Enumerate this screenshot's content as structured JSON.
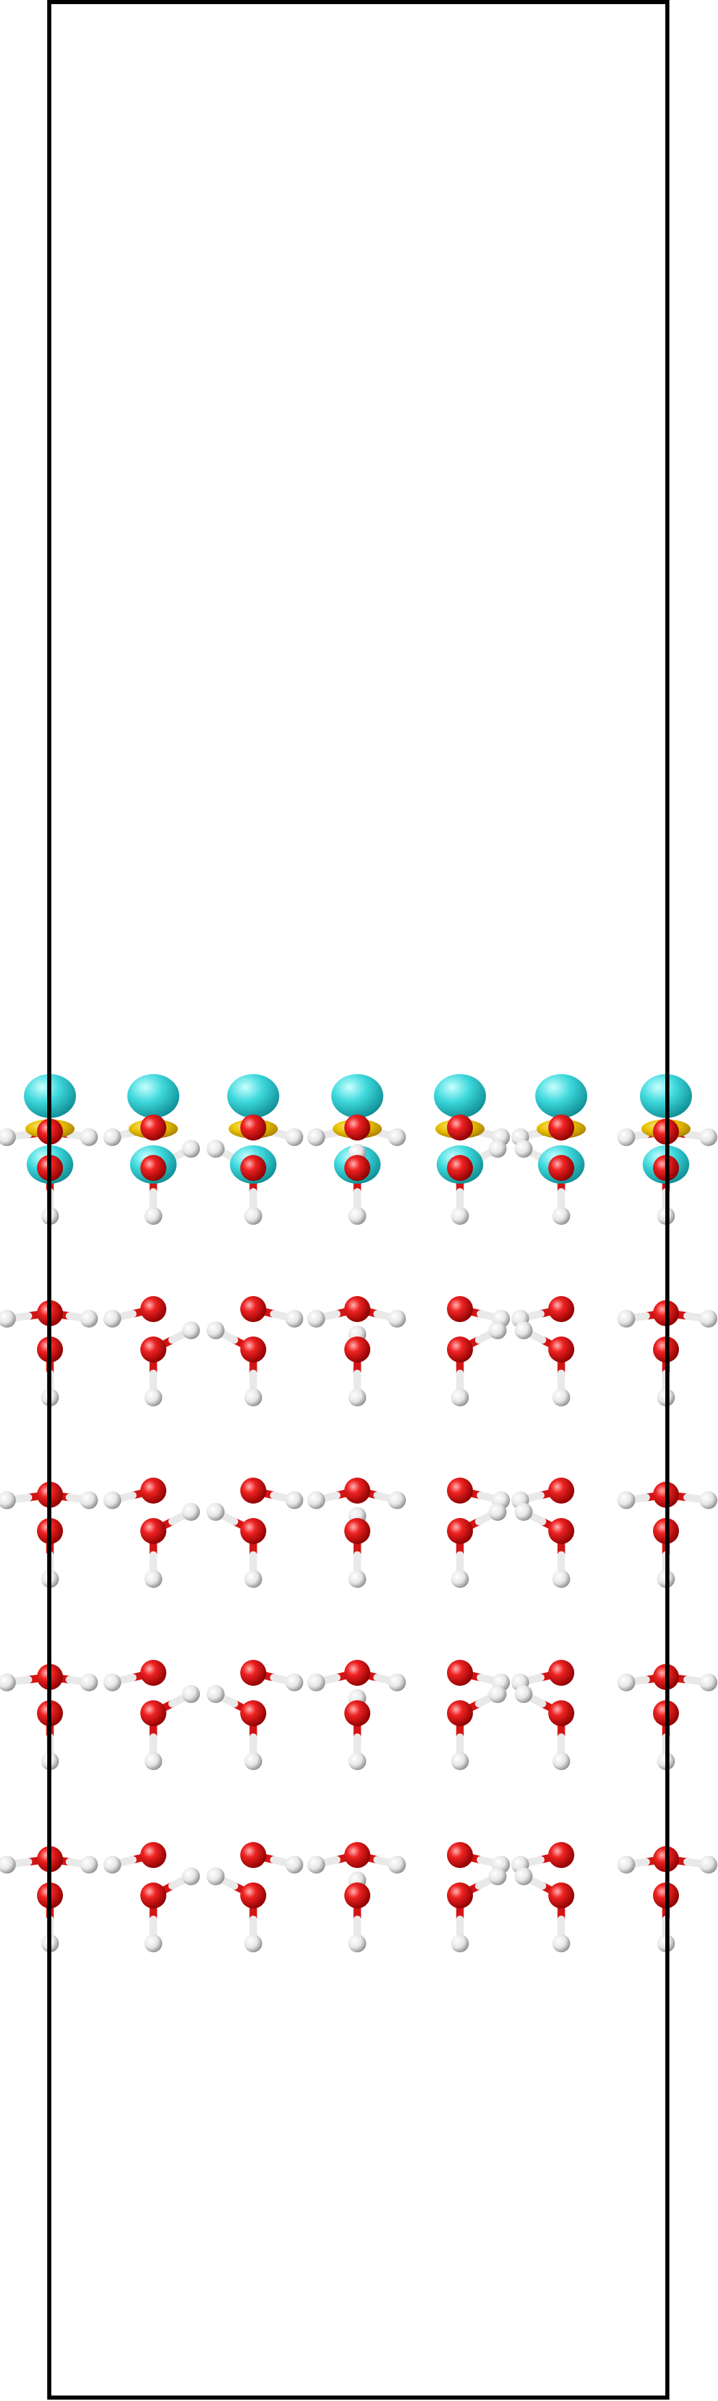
{
  "colors": {
    "background": "#ffffff",
    "cell_border": "#000000",
    "oxygen": "#e01010",
    "hydrogen": "#f2f2f2",
    "isosurface_positive": "#35d4d8",
    "isosurface_negative": "#e8c400"
  },
  "structure": {
    "layer_count": 5,
    "columns_per_layer": 6,
    "isosurface_layers": [
      0
    ]
  }
}
